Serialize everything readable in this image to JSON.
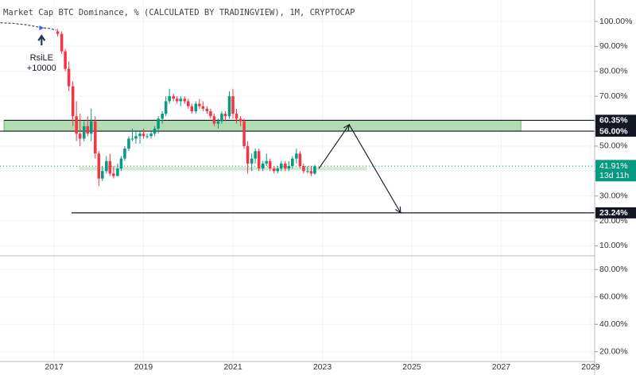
{
  "chart_data": {
    "type": "candlestick",
    "title": "Market Cap BTC Dominance, % (CALCULATED BY TRADINGVIEW), 1M, CRYPTOCAP",
    "xlim": [
      2015.79,
      2029.09
    ],
    "xticks": [
      2017,
      2019,
      2021,
      2023,
      2025,
      2027,
      2029
    ],
    "ylim": [
      6,
      108.6
    ],
    "yticks": [
      {
        "value": 100,
        "label": "100.00%"
      },
      {
        "value": 90,
        "label": "90.00%"
      },
      {
        "value": 80,
        "label": "80.00%"
      },
      {
        "value": 70,
        "label": "70.00%"
      },
      {
        "value": 60,
        "label": "60.00%"
      },
      {
        "value": 50,
        "label": "50.00%"
      },
      {
        "value": 40,
        "label": "40.00%"
      },
      {
        "value": 30,
        "label": "30.00%"
      },
      {
        "value": 20,
        "label": "20.00%"
      },
      {
        "value": 10,
        "label": "10.00%"
      }
    ],
    "grid": true,
    "up_color": "#089981",
    "down_color": "#f23645",
    "x": [
      2017.08,
      2017.17,
      2017.25,
      2017.33,
      2017.42,
      2017.5,
      2017.58,
      2017.67,
      2017.75,
      2017.83,
      2017.92,
      2018.0,
      2018.08,
      2018.17,
      2018.25,
      2018.33,
      2018.42,
      2018.5,
      2018.58,
      2018.67,
      2018.75,
      2018.83,
      2018.92,
      2019.0,
      2019.08,
      2019.17,
      2019.25,
      2019.33,
      2019.42,
      2019.5,
      2019.58,
      2019.67,
      2019.75,
      2019.83,
      2019.92,
      2020.0,
      2020.08,
      2020.17,
      2020.25,
      2020.33,
      2020.42,
      2020.5,
      2020.58,
      2020.67,
      2020.75,
      2020.83,
      2020.92,
      2021.0,
      2021.08,
      2021.17,
      2021.25,
      2021.33,
      2021.42,
      2021.5,
      2021.58,
      2021.67,
      2021.75,
      2021.83,
      2021.92,
      2022.0,
      2022.08,
      2022.17,
      2022.25,
      2022.33,
      2022.42,
      2022.5,
      2022.58,
      2022.67,
      2022.75,
      2022.83
    ],
    "open": [
      96,
      95,
      88,
      81,
      74,
      62,
      55,
      53,
      58,
      55,
      60,
      47,
      37,
      40,
      44,
      39,
      38,
      41,
      45,
      49,
      53,
      53,
      54,
      55,
      54,
      54,
      55,
      57,
      61,
      63,
      68,
      70,
      69,
      68,
      69,
      68,
      66,
      64,
      67,
      66,
      65,
      64,
      62,
      59,
      60,
      63,
      62,
      70,
      63,
      61,
      60,
      50,
      43,
      45,
      48,
      41,
      43,
      44,
      41,
      40,
      41,
      43,
      41,
      42,
      45,
      47,
      42,
      40,
      40,
      39
    ],
    "high": [
      97,
      96,
      89,
      84,
      76,
      68,
      63,
      60,
      62,
      65,
      62,
      48,
      42,
      46,
      47,
      42,
      43,
      46,
      50,
      54,
      57,
      56,
      56,
      57,
      55,
      56,
      58,
      62,
      64,
      70,
      73,
      71,
      70,
      70,
      70,
      69,
      67,
      68,
      69,
      68,
      66,
      65,
      63,
      61,
      64,
      64,
      72,
      73,
      65,
      62,
      61,
      52,
      47,
      49,
      49,
      44,
      47,
      45,
      42,
      42,
      44,
      44,
      44,
      46,
      49,
      48,
      43,
      42,
      42,
      42.5
    ],
    "low": [
      94,
      87,
      80,
      72,
      58,
      52,
      50,
      52,
      54,
      52,
      45,
      34,
      36,
      39,
      38,
      37,
      38,
      40,
      44,
      48,
      52,
      51,
      51,
      53,
      53,
      53,
      54,
      55,
      59,
      62,
      67,
      68,
      67,
      66,
      67,
      65,
      63,
      63,
      65,
      64,
      63,
      61,
      58,
      57,
      59,
      60,
      61,
      61,
      59,
      58,
      49,
      39,
      40,
      43,
      40,
      40,
      42,
      40,
      39,
      39,
      40,
      40,
      40,
      41,
      43,
      41,
      39,
      39,
      38,
      38.5
    ],
    "close": [
      95,
      88,
      81,
      74,
      62,
      55,
      53,
      58,
      55,
      60,
      47,
      37,
      40,
      44,
      39,
      38,
      41,
      45,
      49,
      53,
      53,
      54,
      55,
      54,
      54,
      55,
      57,
      61,
      63,
      68,
      70,
      69,
      68,
      69,
      68,
      66,
      64,
      67,
      66,
      65,
      64,
      62,
      59,
      60,
      63,
      62,
      70,
      63,
      61,
      60,
      50,
      43,
      45,
      48,
      41,
      43,
      44,
      41,
      40,
      41,
      43,
      41,
      42,
      45,
      47,
      42,
      40,
      40,
      39,
      41.91
    ],
    "history": {
      "x": [
        2015.8,
        2016.1,
        2016.4,
        2016.7,
        2016.9,
        2017.05
      ],
      "values": [
        99.5,
        99.2,
        98.6,
        97.6,
        97.2,
        96.5
      ]
    },
    "signal": {
      "x": 2016.72,
      "y": 97.4,
      "label": "RsiLE",
      "qty": "+10000"
    },
    "zones": [
      {
        "x": [
          2015.88,
          2027.44
        ],
        "y": [
          56,
          60.35
        ]
      },
      {
        "x": [
          2017.57,
          2024.0
        ],
        "y": [
          40.3,
          41.6
        ]
      }
    ],
    "levels": [
      {
        "value": 60.35,
        "label": "60.35%",
        "from": 2015.88
      },
      {
        "value": 56,
        "label": "56.00%",
        "from": 2015.79
      },
      {
        "value": 23.24,
        "label": "23.24%",
        "from": 2017.39
      }
    ],
    "last": {
      "value": 41.91,
      "label": "41.91%",
      "countdown": "13d 11h"
    },
    "projection": {
      "x": [
        2022.92,
        2023.6,
        2024.75
      ],
      "y": [
        41,
        58.6,
        23.24
      ]
    },
    "lower_pane": {
      "ylim": [
        12.9,
        90
      ],
      "yticks": [
        {
          "value": 80,
          "label": "80.00%"
        },
        {
          "value": 60,
          "label": "60.00%"
        },
        {
          "value": 40,
          "label": "40.00%"
        },
        {
          "value": 20,
          "label": "20.00%"
        }
      ]
    }
  }
}
